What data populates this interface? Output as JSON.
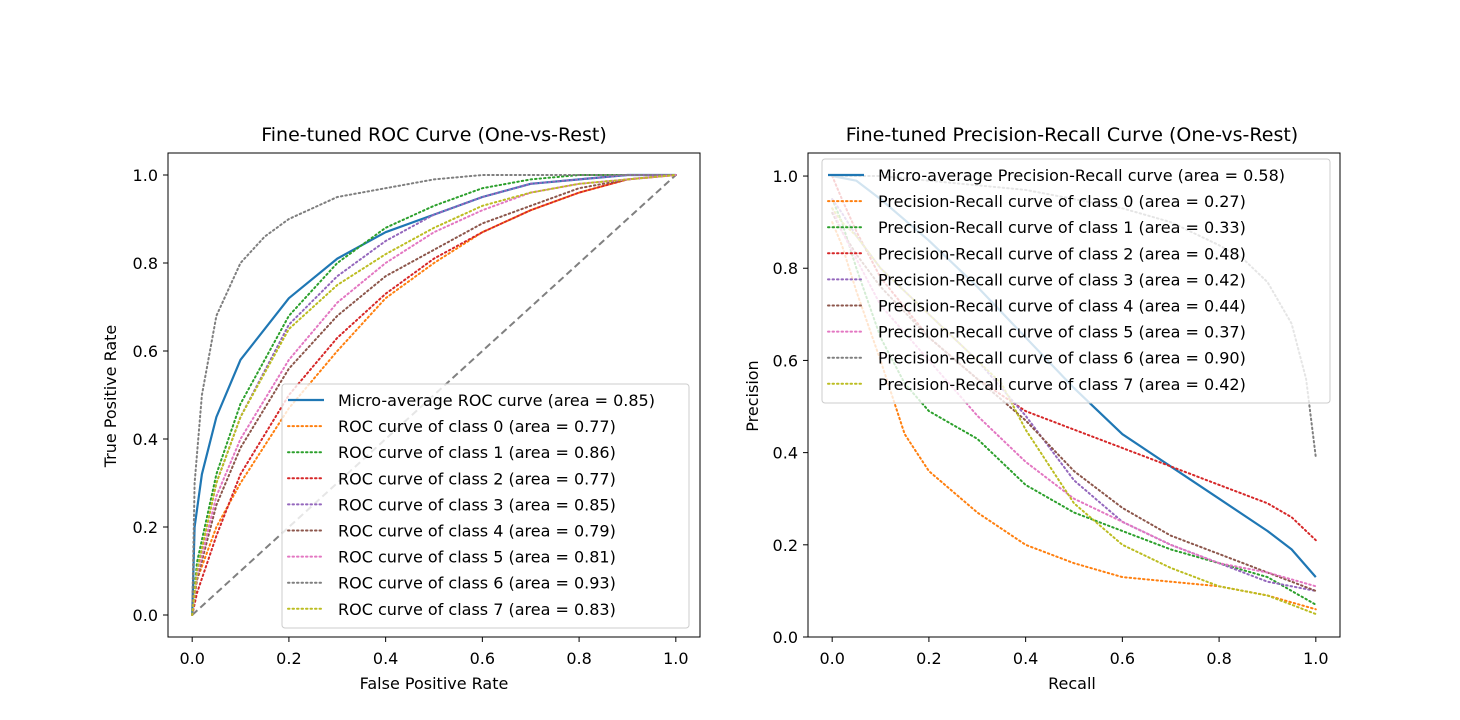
{
  "chart_data": [
    {
      "type": "line",
      "title": "Fine-tuned ROC Curve (One-vs-Rest)",
      "xlabel": "False Positive Rate",
      "ylabel": "True Positive Rate",
      "xlim": [
        -0.05,
        1.05
      ],
      "ylim": [
        -0.05,
        1.05
      ],
      "xticks": [
        0.0,
        0.2,
        0.4,
        0.6,
        0.8,
        1.0
      ],
      "yticks": [
        0.0,
        0.2,
        0.4,
        0.6,
        0.8,
        1.0
      ],
      "xtick_labels": [
        "0.0",
        "0.2",
        "0.4",
        "0.6",
        "0.8",
        "1.0"
      ],
      "ytick_labels": [
        "0.0",
        "0.2",
        "0.4",
        "0.6",
        "0.8",
        "1.0"
      ],
      "legend_position": "lower-right",
      "grid": false,
      "diagonal": {
        "x": [
          0,
          1
        ],
        "y": [
          0,
          1
        ],
        "color": "#808080",
        "style": "dashed"
      },
      "series": [
        {
          "name": "Micro-average ROC curve (area = 0.85)",
          "color": "#1f77b4",
          "style": "solid",
          "x": [
            0,
            0.005,
            0.02,
            0.05,
            0.1,
            0.2,
            0.3,
            0.4,
            0.5,
            0.6,
            0.7,
            0.8,
            0.9,
            1.0
          ],
          "y": [
            0,
            0.2,
            0.32,
            0.45,
            0.58,
            0.72,
            0.81,
            0.87,
            0.91,
            0.95,
            0.98,
            0.99,
            1.0,
            1.0
          ]
        },
        {
          "name": "ROC curve of class 0 (area = 0.77)",
          "color": "#ff7f0e",
          "style": "dotted",
          "x": [
            0,
            0.01,
            0.05,
            0.1,
            0.2,
            0.3,
            0.4,
            0.5,
            0.6,
            0.7,
            0.8,
            0.9,
            1.0
          ],
          "y": [
            0,
            0.08,
            0.2,
            0.3,
            0.47,
            0.6,
            0.72,
            0.8,
            0.87,
            0.92,
            0.96,
            0.99,
            1.0
          ]
        },
        {
          "name": "ROC curve of class 1 (area = 0.86)",
          "color": "#2ca02c",
          "style": "dotted",
          "x": [
            0,
            0.01,
            0.05,
            0.1,
            0.2,
            0.3,
            0.4,
            0.5,
            0.6,
            0.7,
            0.8,
            0.9,
            1.0
          ],
          "y": [
            0,
            0.12,
            0.32,
            0.48,
            0.68,
            0.8,
            0.88,
            0.93,
            0.97,
            0.99,
            1.0,
            1.0,
            1.0
          ]
        },
        {
          "name": "ROC curve of class 2 (area = 0.77)",
          "color": "#d62728",
          "style": "dotted",
          "x": [
            0,
            0.01,
            0.05,
            0.1,
            0.2,
            0.3,
            0.4,
            0.5,
            0.6,
            0.7,
            0.8,
            0.9,
            1.0
          ],
          "y": [
            0,
            0.05,
            0.18,
            0.32,
            0.5,
            0.63,
            0.73,
            0.81,
            0.87,
            0.92,
            0.96,
            0.99,
            1.0
          ]
        },
        {
          "name": "ROC curve of class 3 (area = 0.85)",
          "color": "#9467bd",
          "style": "dotted",
          "x": [
            0,
            0.01,
            0.05,
            0.1,
            0.2,
            0.3,
            0.4,
            0.5,
            0.6,
            0.7,
            0.8,
            0.9,
            1.0
          ],
          "y": [
            0,
            0.1,
            0.3,
            0.45,
            0.66,
            0.77,
            0.85,
            0.91,
            0.95,
            0.98,
            0.99,
            1.0,
            1.0
          ]
        },
        {
          "name": "ROC curve of class 4 (area = 0.79)",
          "color": "#8c564b",
          "style": "dotted",
          "x": [
            0,
            0.01,
            0.05,
            0.1,
            0.2,
            0.3,
            0.4,
            0.5,
            0.6,
            0.7,
            0.8,
            0.9,
            1.0
          ],
          "y": [
            0,
            0.08,
            0.25,
            0.38,
            0.56,
            0.68,
            0.77,
            0.83,
            0.89,
            0.93,
            0.97,
            0.99,
            1.0
          ]
        },
        {
          "name": "ROC curve of class 5 (area = 0.81)",
          "color": "#e377c2",
          "style": "dotted",
          "x": [
            0,
            0.01,
            0.05,
            0.1,
            0.2,
            0.3,
            0.4,
            0.5,
            0.6,
            0.7,
            0.8,
            0.9,
            1.0
          ],
          "y": [
            0,
            0.09,
            0.27,
            0.4,
            0.58,
            0.71,
            0.8,
            0.87,
            0.92,
            0.96,
            0.98,
            0.99,
            1.0
          ]
        },
        {
          "name": "ROC curve of class 6 (area = 0.93)",
          "color": "#7f7f7f",
          "style": "dotted",
          "x": [
            0,
            0.005,
            0.02,
            0.05,
            0.1,
            0.15,
            0.2,
            0.3,
            0.4,
            0.5,
            0.6,
            0.7,
            0.8,
            1.0
          ],
          "y": [
            0,
            0.3,
            0.5,
            0.68,
            0.8,
            0.86,
            0.9,
            0.95,
            0.97,
            0.99,
            1.0,
            1.0,
            1.0,
            1.0
          ]
        },
        {
          "name": "ROC curve of class 7 (area = 0.83)",
          "color": "#bcbd22",
          "style": "dotted",
          "x": [
            0,
            0.01,
            0.05,
            0.1,
            0.2,
            0.3,
            0.4,
            0.5,
            0.6,
            0.7,
            0.8,
            0.9,
            1.0
          ],
          "y": [
            0,
            0.1,
            0.3,
            0.45,
            0.65,
            0.75,
            0.82,
            0.88,
            0.93,
            0.96,
            0.98,
            0.99,
            1.0
          ]
        }
      ]
    },
    {
      "type": "line",
      "title": "Fine-tuned Precision-Recall Curve (One-vs-Rest)",
      "xlabel": "Recall",
      "ylabel": "Precision",
      "xlim": [
        -0.05,
        1.05
      ],
      "ylim": [
        0.0,
        1.05
      ],
      "xticks": [
        0.0,
        0.2,
        0.4,
        0.6,
        0.8,
        1.0
      ],
      "yticks": [
        0.0,
        0.2,
        0.4,
        0.6,
        0.8,
        1.0
      ],
      "xtick_labels": [
        "0.0",
        "0.2",
        "0.4",
        "0.6",
        "0.8",
        "1.0"
      ],
      "ytick_labels": [
        "0.0",
        "0.2",
        "0.4",
        "0.6",
        "0.8",
        "1.0"
      ],
      "legend_position": "upper-right",
      "grid": false,
      "series": [
        {
          "name": "Micro-average Precision-Recall curve (area = 0.58)",
          "color": "#1f77b4",
          "style": "solid",
          "x": [
            0,
            0.05,
            0.1,
            0.2,
            0.3,
            0.4,
            0.5,
            0.6,
            0.7,
            0.8,
            0.9,
            0.95,
            1.0
          ],
          "y": [
            1.0,
            0.99,
            0.95,
            0.86,
            0.76,
            0.65,
            0.54,
            0.44,
            0.37,
            0.3,
            0.23,
            0.19,
            0.13
          ]
        },
        {
          "name": "Precision-Recall curve of class 0 (area = 0.27)",
          "color": "#ff7f0e",
          "style": "dotted",
          "x": [
            0,
            0.02,
            0.05,
            0.1,
            0.15,
            0.2,
            0.3,
            0.4,
            0.5,
            0.6,
            0.7,
            0.8,
            0.9,
            1.0
          ],
          "y": [
            0.9,
            0.85,
            0.75,
            0.6,
            0.44,
            0.36,
            0.27,
            0.2,
            0.16,
            0.13,
            0.12,
            0.11,
            0.09,
            0.06
          ]
        },
        {
          "name": "Precision-Recall curve of class 1 (area = 0.33)",
          "color": "#2ca02c",
          "style": "dotted",
          "x": [
            0,
            0.02,
            0.05,
            0.1,
            0.15,
            0.2,
            0.3,
            0.4,
            0.5,
            0.6,
            0.7,
            0.8,
            0.9,
            1.0
          ],
          "y": [
            0.95,
            0.9,
            0.8,
            0.65,
            0.55,
            0.49,
            0.43,
            0.33,
            0.27,
            0.23,
            0.19,
            0.16,
            0.13,
            0.07
          ]
        },
        {
          "name": "Precision-Recall curve of class 2 (area = 0.48)",
          "color": "#d62728",
          "style": "dotted",
          "x": [
            0,
            0.02,
            0.05,
            0.1,
            0.2,
            0.3,
            0.4,
            0.5,
            0.6,
            0.7,
            0.8,
            0.9,
            0.95,
            1.0
          ],
          "y": [
            1.0,
            0.95,
            0.88,
            0.78,
            0.65,
            0.56,
            0.49,
            0.45,
            0.41,
            0.37,
            0.33,
            0.29,
            0.26,
            0.21
          ]
        },
        {
          "name": "Precision-Recall curve of class 3 (area = 0.42)",
          "color": "#9467bd",
          "style": "dotted",
          "x": [
            0,
            0.02,
            0.05,
            0.1,
            0.2,
            0.3,
            0.4,
            0.5,
            0.6,
            0.7,
            0.8,
            0.9,
            1.0
          ],
          "y": [
            0.95,
            0.92,
            0.87,
            0.8,
            0.7,
            0.6,
            0.48,
            0.34,
            0.25,
            0.2,
            0.16,
            0.12,
            0.1
          ]
        },
        {
          "name": "Precision-Recall curve of class 4 (area = 0.44)",
          "color": "#8c564b",
          "style": "dotted",
          "x": [
            0,
            0.02,
            0.05,
            0.1,
            0.2,
            0.3,
            0.4,
            0.5,
            0.6,
            0.7,
            0.8,
            0.9,
            1.0
          ],
          "y": [
            0.92,
            0.88,
            0.83,
            0.76,
            0.65,
            0.56,
            0.47,
            0.36,
            0.28,
            0.22,
            0.18,
            0.14,
            0.1
          ]
        },
        {
          "name": "Precision-Recall curve of class 5 (area = 0.37)",
          "color": "#e377c2",
          "style": "dotted",
          "x": [
            0,
            0.02,
            0.05,
            0.1,
            0.2,
            0.3,
            0.4,
            0.5,
            0.6,
            0.7,
            0.8,
            0.9,
            1.0
          ],
          "y": [
            0.93,
            0.88,
            0.82,
            0.72,
            0.6,
            0.48,
            0.38,
            0.3,
            0.25,
            0.2,
            0.16,
            0.14,
            0.11
          ]
        },
        {
          "name": "Precision-Recall curve of class 6 (area = 0.90)",
          "color": "#7f7f7f",
          "style": "dotted",
          "x": [
            0,
            0.1,
            0.2,
            0.3,
            0.4,
            0.5,
            0.6,
            0.7,
            0.8,
            0.85,
            0.9,
            0.95,
            0.98,
            1.0
          ],
          "y": [
            1.0,
            1.0,
            0.99,
            0.98,
            0.97,
            0.95,
            0.93,
            0.9,
            0.85,
            0.82,
            0.77,
            0.68,
            0.56,
            0.39
          ]
        },
        {
          "name": "Precision-Recall curve of class 7 (area = 0.42)",
          "color": "#bcbd22",
          "style": "dotted",
          "x": [
            0,
            0.02,
            0.05,
            0.1,
            0.2,
            0.3,
            0.35,
            0.4,
            0.5,
            0.6,
            0.7,
            0.8,
            0.9,
            1.0
          ],
          "y": [
            0.93,
            0.9,
            0.87,
            0.8,
            0.7,
            0.6,
            0.55,
            0.45,
            0.29,
            0.2,
            0.15,
            0.11,
            0.09,
            0.05
          ]
        }
      ]
    }
  ]
}
